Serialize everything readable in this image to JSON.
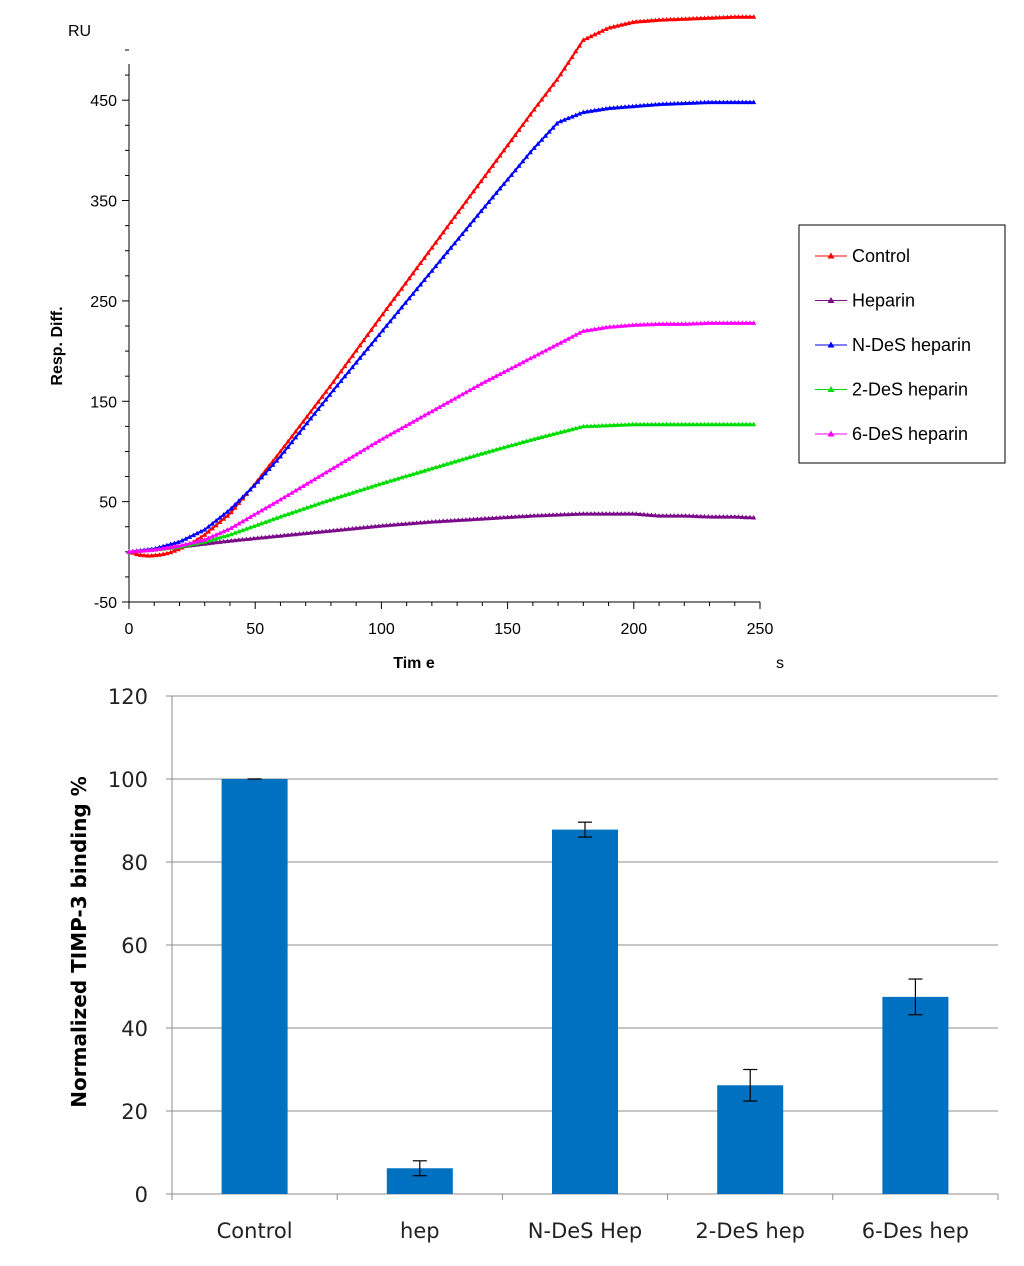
{
  "chart_data": [
    {
      "type": "line",
      "title": "",
      "unit_label": "RU",
      "ylabel": "Resp. Diff.",
      "xlabel": "Tim e",
      "xunit": "s",
      "xlim": [
        0,
        250
      ],
      "ylim": [
        -50,
        500
      ],
      "xticks": [
        "0",
        "50",
        "100",
        "150",
        "200",
        "250"
      ],
      "yticks": [
        "-50",
        "50",
        "150",
        "250",
        "350",
        "450"
      ],
      "legend_position": "right",
      "series": [
        {
          "name": "Control",
          "color": "#ff0000",
          "points": [
            [
              0,
              0
            ],
            [
              4,
              -3
            ],
            [
              8,
              -4
            ],
            [
              12,
              -3
            ],
            [
              16,
              -1
            ],
            [
              20,
              3
            ],
            [
              25,
              9
            ],
            [
              30,
              17
            ],
            [
              40,
              38
            ],
            [
              50,
              68
            ],
            [
              60,
              100
            ],
            [
              80,
              166
            ],
            [
              100,
              235
            ],
            [
              120,
              303
            ],
            [
              140,
              371
            ],
            [
              160,
              439
            ],
            [
              170,
              472
            ],
            [
              180,
              510
            ],
            [
              190,
              522
            ],
            [
              200,
              528
            ],
            [
              210,
              530
            ],
            [
              220,
              531
            ],
            [
              230,
              532
            ],
            [
              240,
              533
            ],
            [
              248,
              533
            ]
          ]
        },
        {
          "name": "Heparin",
          "color": "#7a0a8a",
          "points": [
            [
              0,
              0
            ],
            [
              20,
              5
            ],
            [
              40,
              11
            ],
            [
              60,
              16
            ],
            [
              80,
              21
            ],
            [
              100,
              26
            ],
            [
              120,
              30
            ],
            [
              140,
              33
            ],
            [
              160,
              36
            ],
            [
              180,
              38
            ],
            [
              200,
              38
            ],
            [
              210,
              36
            ],
            [
              220,
              36
            ],
            [
              230,
              35
            ],
            [
              240,
              35
            ],
            [
              248,
              34
            ]
          ]
        },
        {
          "name": "N-DeS heparin",
          "color": "#0000ff",
          "points": [
            [
              0,
              0
            ],
            [
              10,
              3
            ],
            [
              20,
              10
            ],
            [
              30,
              22
            ],
            [
              40,
              42
            ],
            [
              50,
              67
            ],
            [
              60,
              95
            ],
            [
              80,
              158
            ],
            [
              100,
              219
            ],
            [
              120,
              280
            ],
            [
              140,
              341
            ],
            [
              160,
              401
            ],
            [
              170,
              428
            ],
            [
              180,
              438
            ],
            [
              190,
              442
            ],
            [
              200,
              444
            ],
            [
              210,
              446
            ],
            [
              220,
              447
            ],
            [
              230,
              448
            ],
            [
              240,
              448
            ],
            [
              248,
              448
            ]
          ]
        },
        {
          "name": "2-DeS heparin",
          "color": "#00dd00",
          "points": [
            [
              0,
              0
            ],
            [
              10,
              2
            ],
            [
              20,
              5
            ],
            [
              30,
              10
            ],
            [
              40,
              17
            ],
            [
              60,
              35
            ],
            [
              80,
              52
            ],
            [
              100,
              68
            ],
            [
              120,
              83
            ],
            [
              140,
              98
            ],
            [
              160,
              112
            ],
            [
              180,
              125
            ],
            [
              190,
              126
            ],
            [
              200,
              127
            ],
            [
              210,
              127
            ],
            [
              220,
              127
            ],
            [
              230,
              127
            ],
            [
              240,
              127
            ],
            [
              248,
              127
            ]
          ]
        },
        {
          "name": "6-DeS heparin",
          "color": "#ff00ff",
          "points": [
            [
              0,
              0
            ],
            [
              10,
              2
            ],
            [
              20,
              6
            ],
            [
              30,
              12
            ],
            [
              40,
              23
            ],
            [
              60,
              52
            ],
            [
              80,
              82
            ],
            [
              100,
              112
            ],
            [
              120,
              140
            ],
            [
              140,
              168
            ],
            [
              160,
              194
            ],
            [
              180,
              220
            ],
            [
              190,
              224
            ],
            [
              200,
              226
            ],
            [
              210,
              227
            ],
            [
              220,
              227
            ],
            [
              230,
              228
            ],
            [
              240,
              228
            ],
            [
              248,
              228
            ]
          ]
        }
      ]
    },
    {
      "type": "bar",
      "title": "",
      "xlabel": "",
      "ylabel": "Normalized TIMP-3 binding %",
      "ylim": [
        0,
        120
      ],
      "yticks": [
        "0",
        "20",
        "40",
        "60",
        "80",
        "100",
        "120"
      ],
      "categories": [
        "Control",
        "hep",
        "N-DeS Hep",
        "2-DeS hep",
        "6-Des hep"
      ],
      "values": [
        100,
        6.2,
        87.8,
        26.2,
        47.5
      ],
      "errors": [
        0,
        1.8,
        1.8,
        3.8,
        4.3
      ],
      "bar_color": "#0070c0",
      "grid": true
    }
  ]
}
